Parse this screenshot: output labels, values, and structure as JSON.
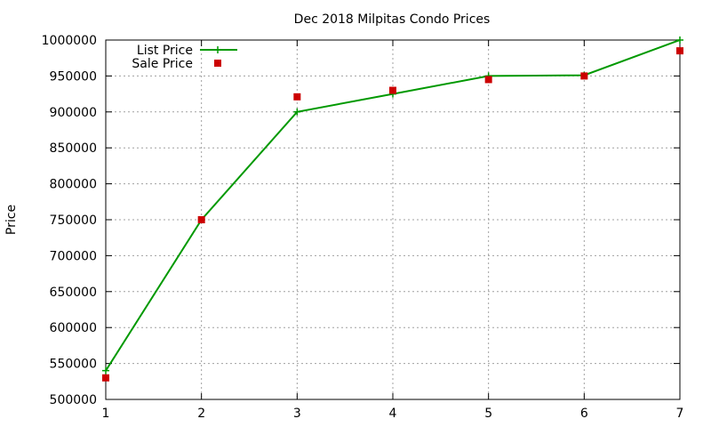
{
  "chart_data": {
    "type": "line",
    "title": "Dec 2018 Milpitas Condo Prices",
    "xlabel": "",
    "ylabel": "Price",
    "x": [
      1,
      2,
      3,
      4,
      5,
      6,
      7
    ],
    "xlim": [
      1,
      7
    ],
    "ylim": [
      500000,
      1000000
    ],
    "xticks": [
      "1",
      "2",
      "3",
      "4",
      "5",
      "6",
      "7"
    ],
    "yticks": [
      "500000",
      "550000",
      "600000",
      "650000",
      "700000",
      "750000",
      "800000",
      "850000",
      "900000",
      "950000",
      "1000000"
    ],
    "grid": true,
    "legend_position": "top-left",
    "series": [
      {
        "name": "List Price",
        "style": "line+cross",
        "color": "#009900",
        "values": [
          540000,
          750000,
          900000,
          925000,
          950000,
          951000,
          1000000
        ]
      },
      {
        "name": "Sale Price",
        "style": "square-points",
        "color": "#cc0000",
        "values": [
          530000,
          750000,
          921000,
          930000,
          945000,
          950000,
          985000
        ]
      }
    ]
  }
}
